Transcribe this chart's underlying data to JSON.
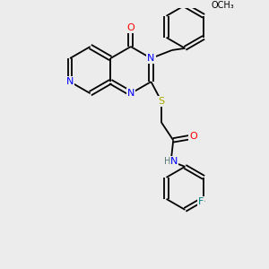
{
  "bg_color": "#ececec",
  "bond_color": "#000000",
  "atom_colors": {
    "N": "#0000ff",
    "O": "#ff0000",
    "S": "#aaaa00",
    "F": "#008080",
    "H": "#557777",
    "C": "#000000"
  },
  "bond_width": 1.3,
  "font_size": 8,
  "scale": 26
}
